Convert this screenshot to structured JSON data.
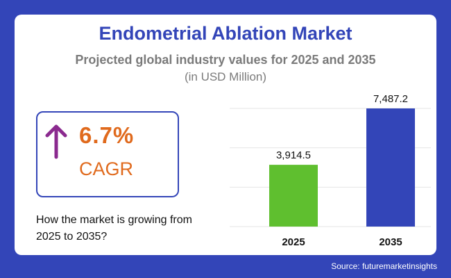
{
  "header": {
    "title": "Endometrial Ablation Market",
    "subtitle": "Projected global industry values for 2025 and 2035",
    "unit": "(in USD Million)"
  },
  "cagr": {
    "value": "6.7%",
    "label": "CAGR",
    "arrow_icon": "arrow-up-icon",
    "arrow_color": "#8b2a8f",
    "text_color": "#e06a1d"
  },
  "question": "How the market is growing from 2025 to 2035?",
  "source": "Source: futuremarketinsights",
  "colors": {
    "background": "#3345b8",
    "title": "#3345b8",
    "bar_2025": "#5fbf2f",
    "bar_2035": "#3345b8"
  },
  "chart_data": {
    "type": "bar",
    "categories": [
      "2025",
      "2035"
    ],
    "values": [
      3914.5,
      7487.2
    ],
    "value_labels": [
      "3,914.5",
      "7,487.2"
    ],
    "colors": [
      "#5fbf2f",
      "#3345b8"
    ],
    "ylim": [
      0,
      7487.2
    ],
    "grid": true,
    "xlabel": "",
    "ylabel": ""
  }
}
